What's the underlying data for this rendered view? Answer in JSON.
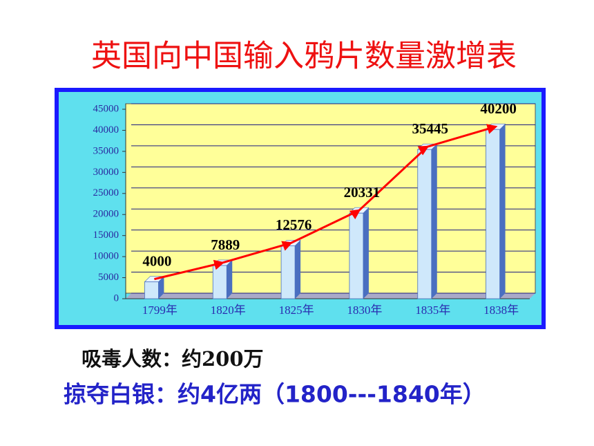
{
  "chart_data": {
    "type": "bar",
    "title": "英国向中国输入鸦片数量激增表",
    "categories": [
      "1799年",
      "1820年",
      "1825年",
      "1830年",
      "1835年",
      "1838年"
    ],
    "values": [
      4000,
      7889,
      12576,
      20331,
      35445,
      40200
    ],
    "color": "#cfe8fb",
    "line_color": "#ff0000",
    "ylim": [
      0,
      45000
    ],
    "yticks": [
      0,
      5000,
      10000,
      15000,
      20000,
      25000,
      30000,
      35000,
      40000,
      45000
    ],
    "grid": true
  },
  "notes": [
    "吸毒人数：约200万",
    "掠夺白银：约4亿两（1800---1840年）"
  ]
}
